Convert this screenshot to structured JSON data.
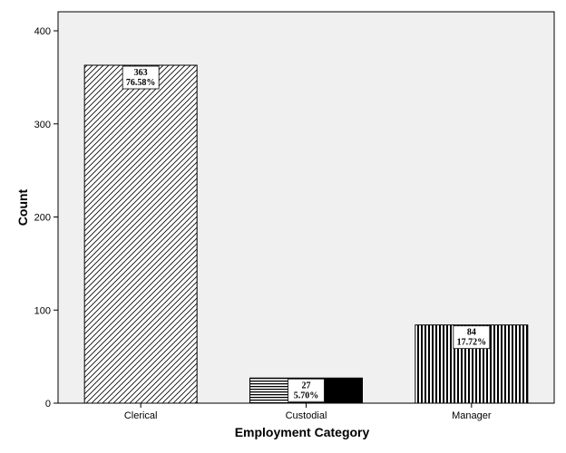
{
  "chart_data": {
    "type": "bar",
    "xlabel": "Employment Category",
    "ylabel": "Count",
    "categories": [
      "Clerical",
      "Custodial",
      "Manager"
    ],
    "values": [
      363,
      27,
      84
    ],
    "percent_labels": [
      "76.58%",
      "5.70%",
      "17.72%"
    ],
    "ylim": [
      0,
      400
    ],
    "yticks": [
      0,
      100,
      200,
      300,
      400
    ],
    "grid": false,
    "legend": "none",
    "colors": {
      "plot_background": "#f0f0f0",
      "bar_stroke": "#000000",
      "label_box": "#ffffff"
    },
    "bar_patterns": [
      "diagonal-hatch",
      "horizontal-stripes-with-solid",
      "vertical-stripes"
    ]
  }
}
